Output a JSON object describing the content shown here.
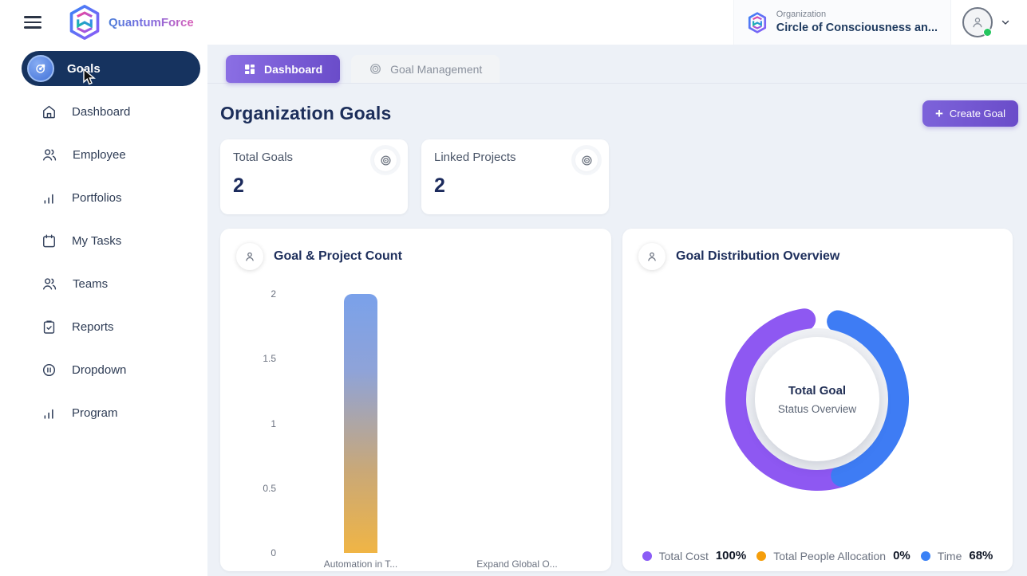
{
  "header": {
    "brand": "QuantumForce",
    "org_label": "Organization",
    "org_value": "Circle of Consciousness an..."
  },
  "sidebar": {
    "active": {
      "label": "Goals"
    },
    "items": [
      {
        "label": "Dashboard"
      },
      {
        "label": "Employee"
      },
      {
        "label": "Portfolios"
      },
      {
        "label": "My Tasks"
      },
      {
        "label": "Teams"
      },
      {
        "label": "Reports"
      },
      {
        "label": "Dropdown"
      },
      {
        "label": "Program"
      }
    ]
  },
  "tabs": [
    {
      "label": "Dashboard",
      "active": true
    },
    {
      "label": "Goal Management",
      "active": false
    }
  ],
  "page": {
    "title": "Organization Goals",
    "create_button": "Create Goal"
  },
  "stats": [
    {
      "label": "Total Goals",
      "value": "2"
    },
    {
      "label": "Linked Projects",
      "value": "2"
    }
  ],
  "chart_data": [
    {
      "type": "bar",
      "title": "Goal & Project Count",
      "categories": [
        "Automation in T...",
        "Expand Global O..."
      ],
      "values": [
        2,
        0
      ],
      "ylim": [
        0,
        2
      ],
      "yticks": [
        "2",
        "1.5",
        "1",
        "0.5",
        "0"
      ],
      "bar_gradient": [
        "#7aa1ea",
        "#f0b545"
      ],
      "grid": false,
      "xlabel": "",
      "ylabel": ""
    },
    {
      "type": "donut",
      "title": "Goal Distribution Overview",
      "center_label_line1": "Total Goal",
      "center_label_line2": "Status Overview",
      "segments": [
        {
          "name": "Total Cost",
          "value_pct": 100,
          "color": "#8e58f2",
          "start_deg": 158,
          "end_deg": 351
        },
        {
          "name": "Total People Allocation",
          "value_pct": 0,
          "color": "#f59e0b",
          "start_deg": 0,
          "end_deg": 0
        },
        {
          "name": "Time",
          "value_pct": 68,
          "color": "#3e7cf4",
          "start_deg": 15,
          "end_deg": 162
        }
      ],
      "legend": [
        {
          "label": "Total Cost",
          "value": "100%",
          "color": "#8b5cf6"
        },
        {
          "label": "Total People Allocation",
          "value": "0%",
          "color": "#f59e0b"
        },
        {
          "label": "Time",
          "value": "68%",
          "color": "#3b82f6"
        }
      ],
      "legend_position": "bottom"
    }
  ],
  "colors": {
    "sidebar_active_bg": "#16335f",
    "accent_purple": "#6a4cc9",
    "page_bg": "#edf1f7",
    "status_dot": "#24c55e"
  }
}
